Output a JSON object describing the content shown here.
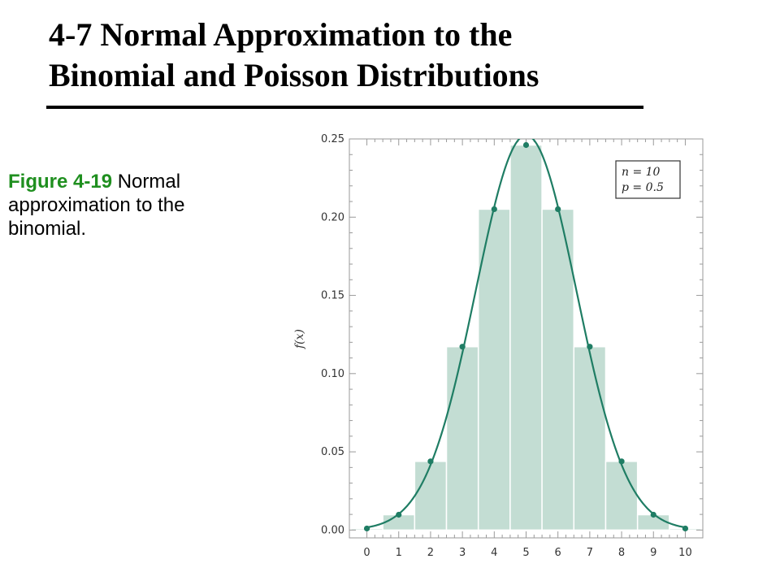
{
  "slide": {
    "title_line1": "4-7 Normal Approximation to the",
    "title_line2": "Binomial and Poisson Distributions",
    "caption_label": "Figure 4-19",
    "caption_text": " Normal approximation to the binomial."
  },
  "chart_data": {
    "type": "bar",
    "title": "",
    "xlabel": "",
    "ylabel": "f(x)",
    "categories": [
      0,
      1,
      2,
      3,
      4,
      5,
      6,
      7,
      8,
      9,
      10
    ],
    "values": [
      0.001,
      0.0098,
      0.0439,
      0.1172,
      0.2051,
      0.2461,
      0.2051,
      0.1172,
      0.0439,
      0.0098,
      0.001
    ],
    "points": [
      0.001,
      0.0098,
      0.0439,
      0.1172,
      0.2051,
      0.2461,
      0.2051,
      0.1172,
      0.0439,
      0.0098,
      0.001
    ],
    "curve": {
      "distribution": "normal",
      "mean": 5,
      "sd": 1.5811
    },
    "xlim": [
      -0.55,
      10.55
    ],
    "ylim": [
      -0.005,
      0.25
    ],
    "yticks": [
      "0.00",
      "0.05",
      "0.10",
      "0.15",
      "0.20",
      "0.25"
    ],
    "xticks": [
      "0",
      "1",
      "2",
      "3",
      "4",
      "5",
      "6",
      "7",
      "8",
      "9",
      "10"
    ],
    "legend": {
      "line1": "n = 10",
      "line2": "p = 0.5",
      "placement": "top-right"
    },
    "colors": {
      "bar": "#c3ddd3",
      "curve": "#1f7d64",
      "point": "#1f7d64",
      "frame": "#9a9a9a"
    }
  }
}
